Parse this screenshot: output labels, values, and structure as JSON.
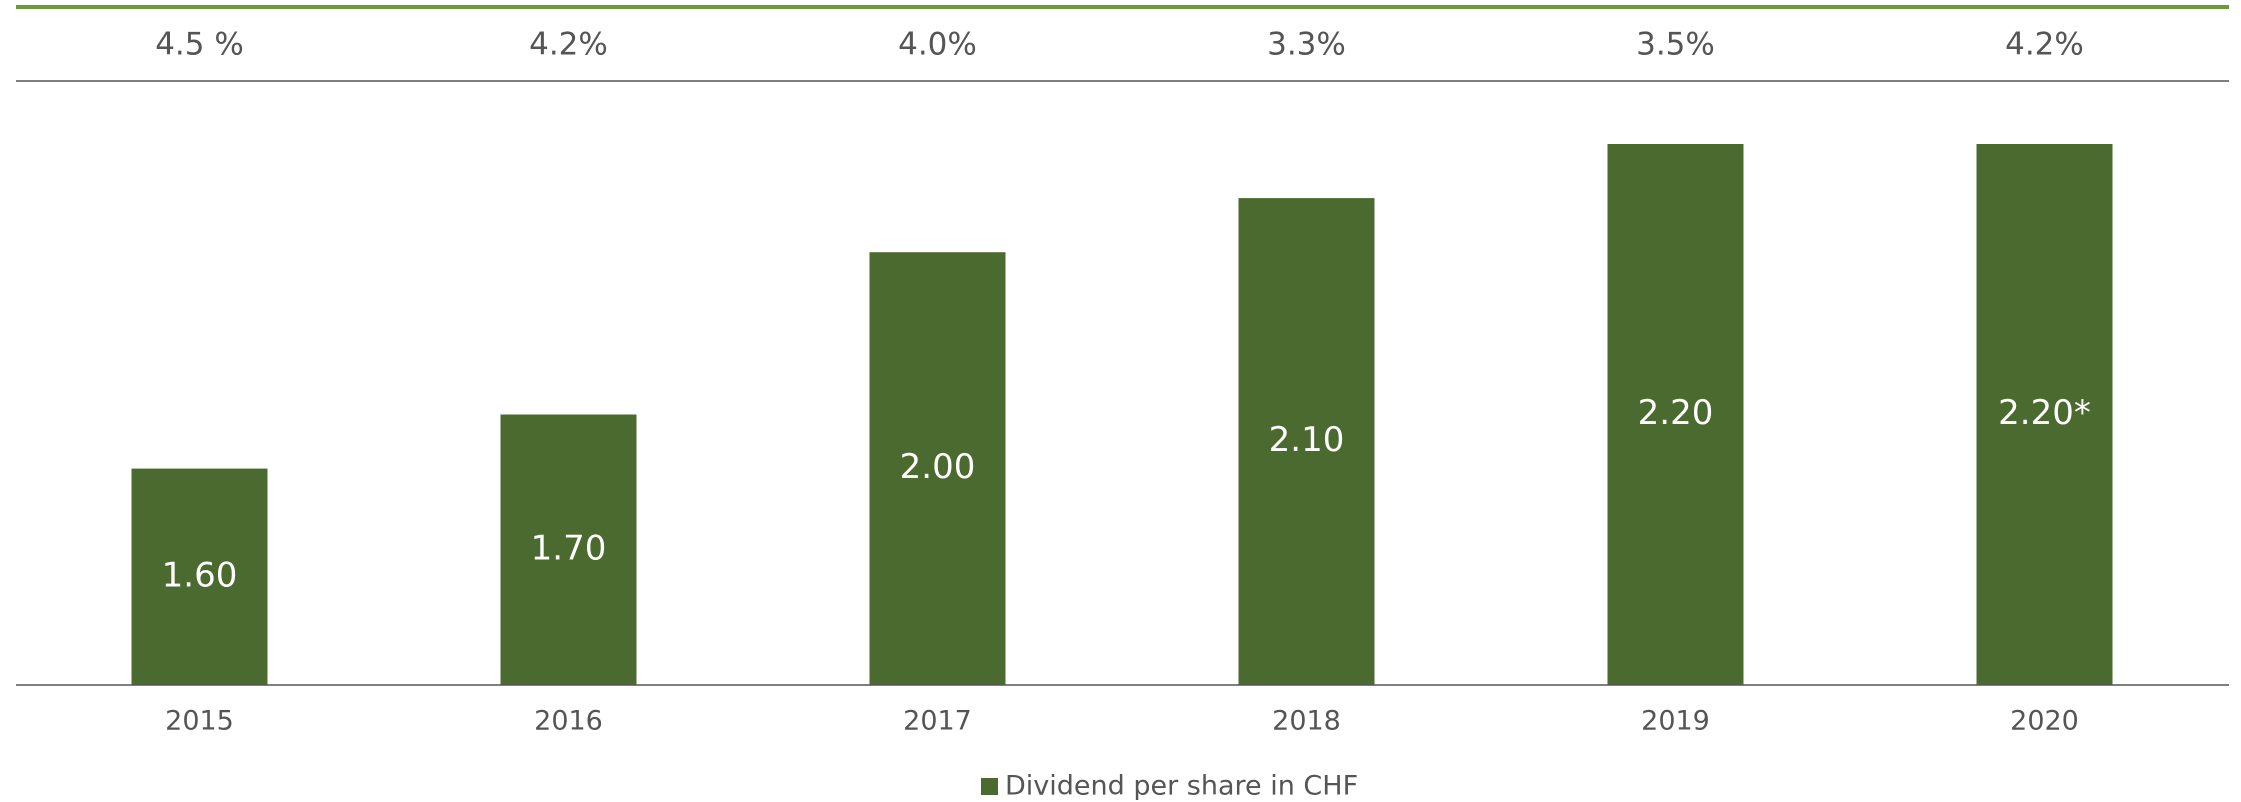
{
  "chart_data": {
    "type": "bar",
    "categories": [
      "2015",
      "2016",
      "2017",
      "2018",
      "2019",
      "2020"
    ],
    "values": [
      1.6,
      1.7,
      2.0,
      2.1,
      2.2,
      2.2
    ],
    "value_labels": [
      "1.60",
      "1.70",
      "2.00",
      "2.10",
      "2.20",
      "2.20*"
    ],
    "annotations": [
      "4.5 %",
      "4.2%",
      "4.0%",
      "3.3%",
      "3.5%",
      "4.2%"
    ],
    "series_name": "Dividend per share in CHF",
    "color": "#4a6a2f",
    "ylim": [
      1.2,
      2.2
    ]
  }
}
